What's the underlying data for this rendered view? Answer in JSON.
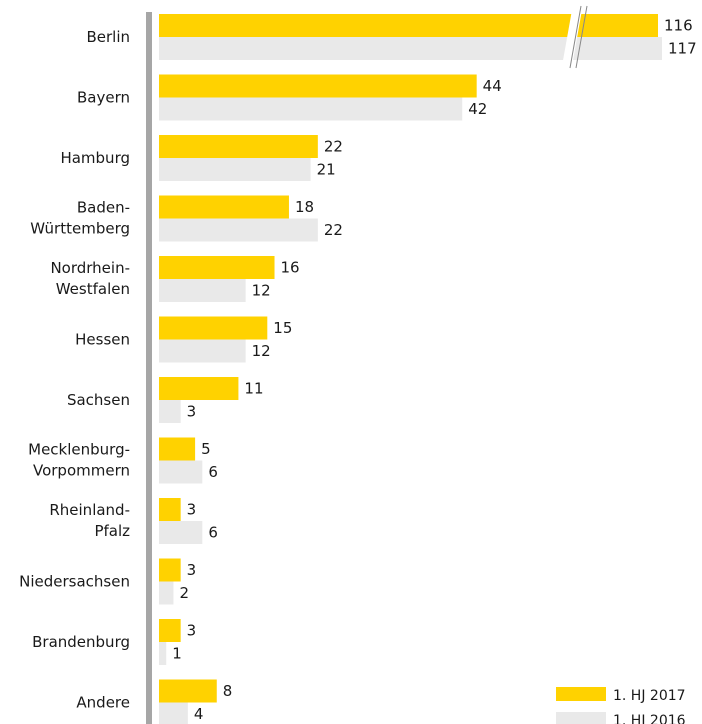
{
  "chart_data": {
    "type": "bar",
    "orientation": "horizontal",
    "categories": [
      [
        "Berlin"
      ],
      [
        "Bayern"
      ],
      [
        "Hamburg"
      ],
      [
        "Baden-",
        "Württemberg"
      ],
      [
        "Nordrhein-",
        "Westfalen"
      ],
      [
        "Hessen"
      ],
      [
        "Sachsen"
      ],
      [
        "Mecklenburg-",
        "Vorpommern"
      ],
      [
        "Rheinland-",
        "Pfalz"
      ],
      [
        "Niedersachsen"
      ],
      [
        "Brandenburg"
      ],
      [
        "Andere"
      ]
    ],
    "series": [
      {
        "name": "1. HJ 2017",
        "color": "#ffd200",
        "values": [
          116,
          44,
          22,
          18,
          16,
          15,
          11,
          5,
          3,
          3,
          3,
          8
        ]
      },
      {
        "name": "1. HJ 2016",
        "color": "#e9e9e9",
        "values": [
          117,
          42,
          21,
          22,
          12,
          12,
          3,
          6,
          6,
          2,
          1,
          4
        ]
      }
    ],
    "axis_break": {
      "applies_to": "Berlin"
    },
    "legend_position": "bottom-right",
    "grid": false
  }
}
